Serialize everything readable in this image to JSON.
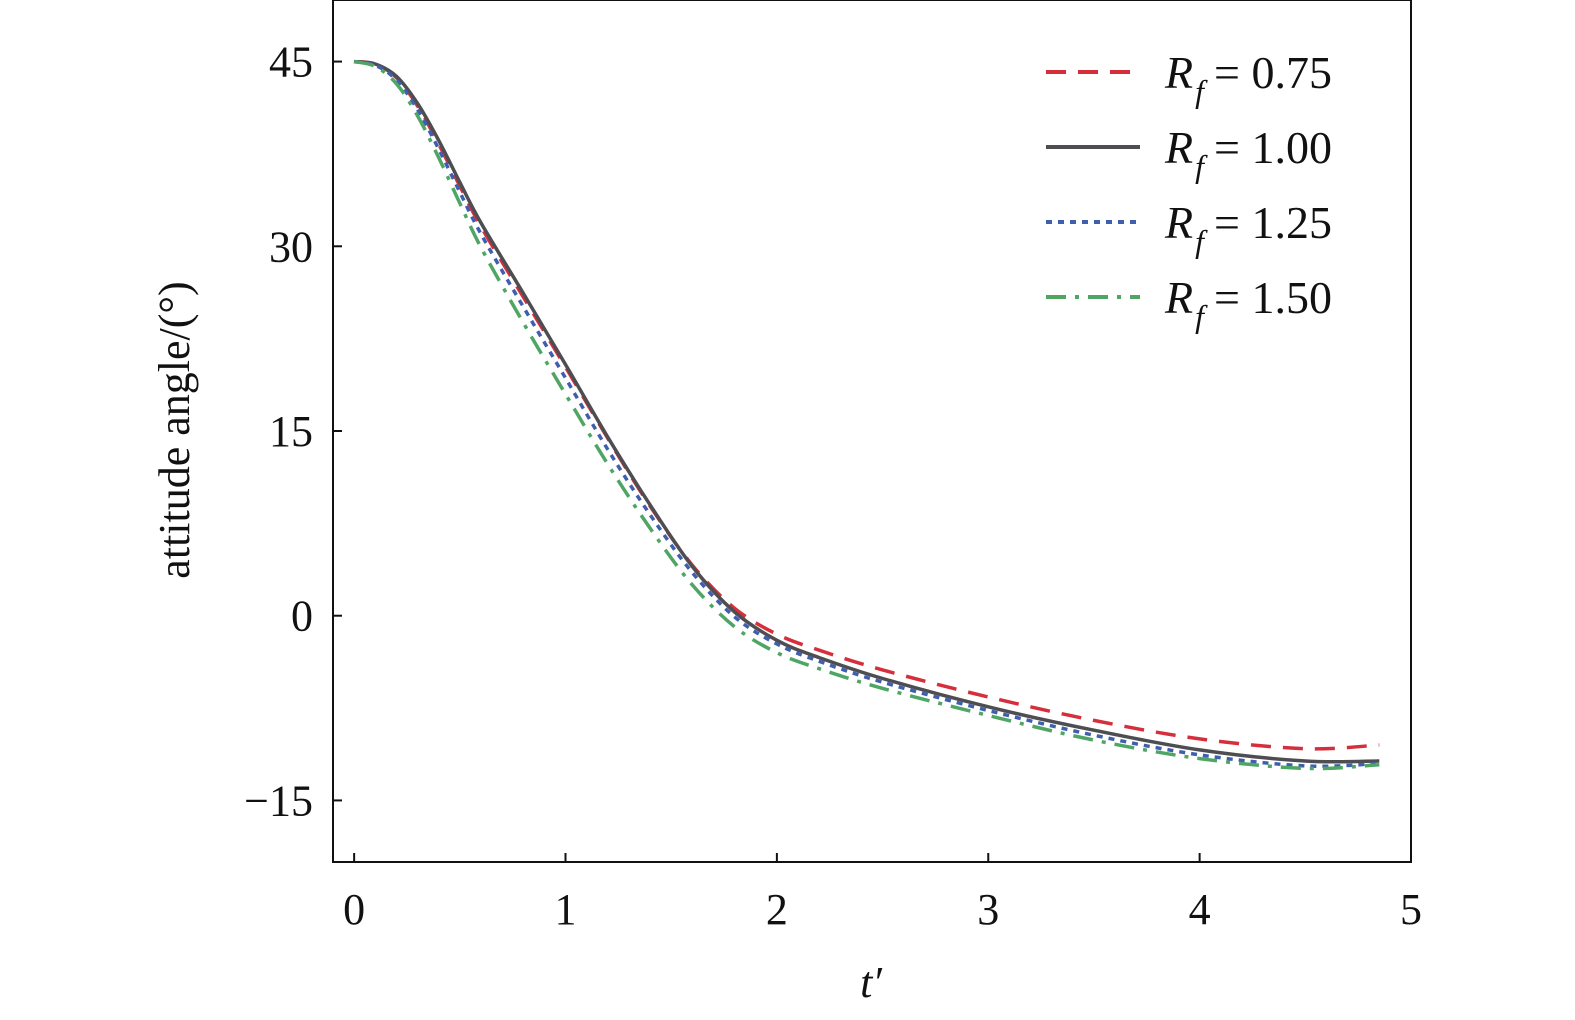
{
  "chart_data": {
    "type": "line",
    "title": "",
    "xlabel": "t′",
    "ylabel": "attitude angle/(°)",
    "xlim": [
      -0.1,
      5
    ],
    "ylim": [
      -20,
      50
    ],
    "xticks": [
      0,
      1,
      2,
      3,
      4,
      5
    ],
    "xtick_labels": [
      "0",
      "1",
      "2",
      "3",
      "4",
      "5"
    ],
    "yticks": [
      -15,
      0,
      15,
      30,
      45
    ],
    "ytick_labels": [
      "−15",
      "0",
      "15",
      "30",
      "45"
    ],
    "grid": false,
    "legend_position": "top-right",
    "series": [
      {
        "name": "R_f = 0.75",
        "legend": {
          "symbol": "R",
          "subscript": "f",
          "value": "= 0.75"
        },
        "color": "#d62f3c",
        "dash": "dashed",
        "x": [
          0,
          0.1,
          0.2,
          0.3,
          0.4,
          0.5,
          0.6,
          0.8,
          1.0,
          1.2,
          1.4,
          1.6,
          1.8,
          2.0,
          2.2,
          2.5,
          3.0,
          3.5,
          4.0,
          4.5,
          4.85
        ],
        "y": [
          45,
          44.8,
          43.7,
          41.4,
          38.3,
          34.9,
          31.6,
          25.9,
          20.2,
          14.4,
          8.9,
          4.1,
          0.6,
          -1.5,
          -2.8,
          -4.4,
          -6.6,
          -8.5,
          -10.0,
          -10.8,
          -10.5
        ]
      },
      {
        "name": "R_f = 1.00",
        "legend": {
          "symbol": "R",
          "subscript": "f",
          "value": "= 1.00"
        },
        "color": "#4d4d52",
        "dash": "solid",
        "x": [
          0,
          0.1,
          0.2,
          0.3,
          0.4,
          0.5,
          0.6,
          0.8,
          1.0,
          1.2,
          1.4,
          1.6,
          1.8,
          2.0,
          2.2,
          2.5,
          3.0,
          3.5,
          4.0,
          4.5,
          4.85
        ],
        "y": [
          45,
          44.8,
          43.8,
          41.6,
          38.6,
          35.2,
          31.9,
          26.2,
          20.4,
          14.5,
          9.0,
          4.0,
          0.3,
          -2.0,
          -3.4,
          -5.1,
          -7.4,
          -9.3,
          -10.9,
          -11.8,
          -11.8
        ]
      },
      {
        "name": "R_f = 1.25",
        "legend": {
          "symbol": "R",
          "subscript": "f",
          "value": "= 1.25"
        },
        "color": "#3f5fae",
        "dash": "dotted",
        "x": [
          0,
          0.1,
          0.2,
          0.3,
          0.4,
          0.5,
          0.6,
          0.8,
          1.0,
          1.2,
          1.4,
          1.6,
          1.8,
          2.0,
          2.2,
          2.5,
          3.0,
          3.5,
          4.0,
          4.5,
          4.85
        ],
        "y": [
          45,
          44.7,
          43.5,
          41.1,
          37.9,
          34.4,
          31.0,
          25.1,
          19.3,
          13.5,
          8.2,
          3.5,
          -0.1,
          -2.3,
          -3.7,
          -5.4,
          -7.7,
          -9.7,
          -11.3,
          -12.2,
          -12.0
        ]
      },
      {
        "name": "R_f = 1.50",
        "legend": {
          "symbol": "R",
          "subscript": "f",
          "value": "= 1.50"
        },
        "color": "#4fa664",
        "dash": "dashdot",
        "x": [
          0,
          0.1,
          0.2,
          0.3,
          0.4,
          0.5,
          0.6,
          0.8,
          1.0,
          1.2,
          1.4,
          1.6,
          1.8,
          2.0,
          2.2,
          2.5,
          3.0,
          3.5,
          4.0,
          4.5,
          4.85
        ],
        "y": [
          45,
          44.6,
          43.2,
          40.6,
          37.2,
          33.5,
          29.9,
          23.8,
          18.0,
          12.3,
          7.1,
          2.5,
          -0.9,
          -3.0,
          -4.3,
          -5.9,
          -8.1,
          -10.1,
          -11.6,
          -12.4,
          -12.1
        ]
      }
    ]
  }
}
